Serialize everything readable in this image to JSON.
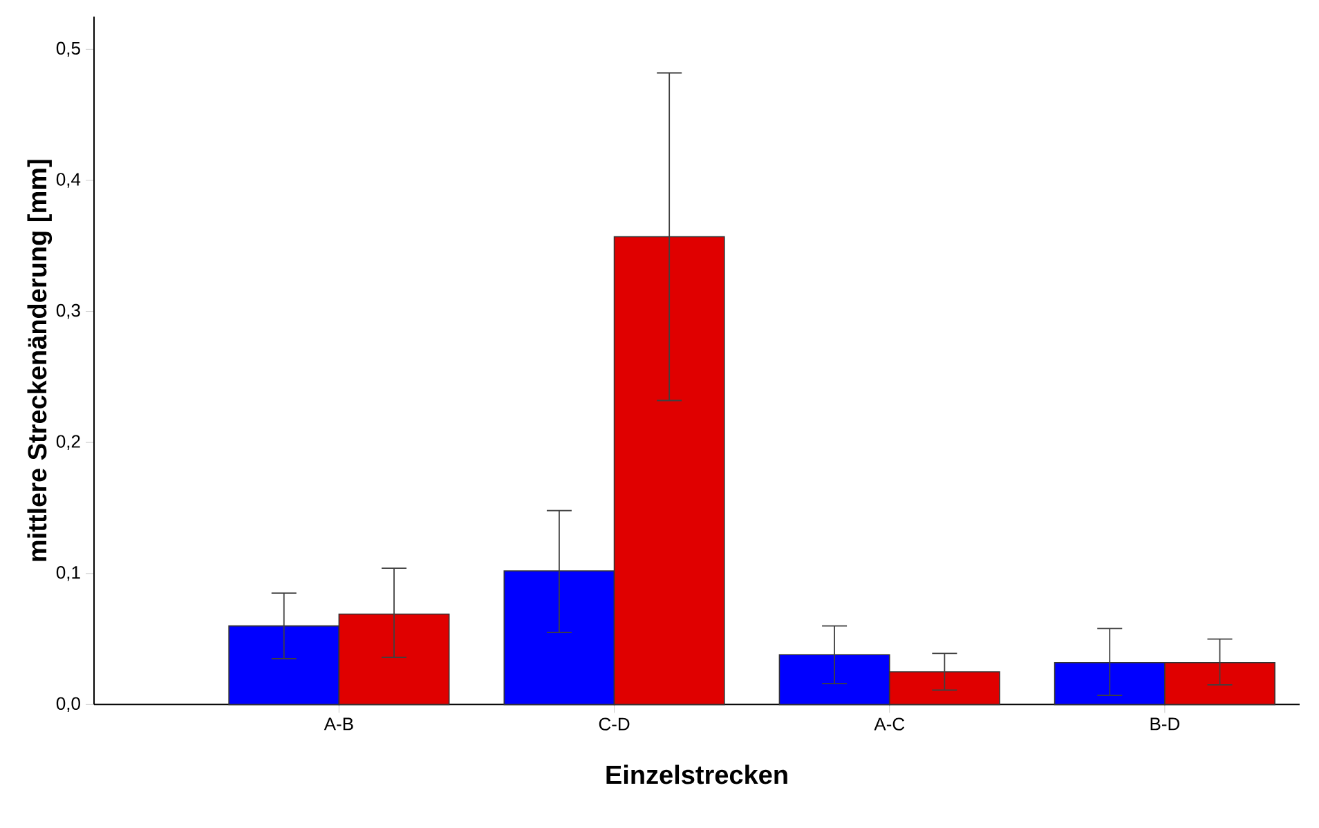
{
  "chart_data": {
    "type": "bar",
    "xlabel": "Einzelstrecken",
    "ylabel": "mittlere Streckenänderung [mm]",
    "categories": [
      "A-B",
      "C-D",
      "A-C",
      "B-D"
    ],
    "series": [
      {
        "color": "#0000ff",
        "values": [
          0.06,
          0.102,
          0.038,
          0.032
        ],
        "errors": [
          [
            0.035,
            0.085
          ],
          [
            0.055,
            0.148
          ],
          [
            0.016,
            0.06
          ],
          [
            0.007,
            0.058
          ]
        ]
      },
      {
        "color": "#e00000",
        "values": [
          0.069,
          0.357,
          0.025,
          0.032
        ],
        "errors": [
          [
            0.036,
            0.104
          ],
          [
            0.232,
            0.482
          ],
          [
            0.011,
            0.039
          ],
          [
            0.015,
            0.05
          ]
        ]
      }
    ],
    "ylim": [
      0,
      0.525
    ],
    "yticks": [
      {
        "value": 0,
        "label": "0,0"
      },
      {
        "value": 0.1,
        "label": "0,1"
      },
      {
        "value": 0.2,
        "label": "0,2"
      },
      {
        "value": 0.3,
        "label": "0,3"
      },
      {
        "value": 0.4,
        "label": "0,4"
      },
      {
        "value": 0.5,
        "label": "0,5"
      }
    ],
    "grid": false
  }
}
